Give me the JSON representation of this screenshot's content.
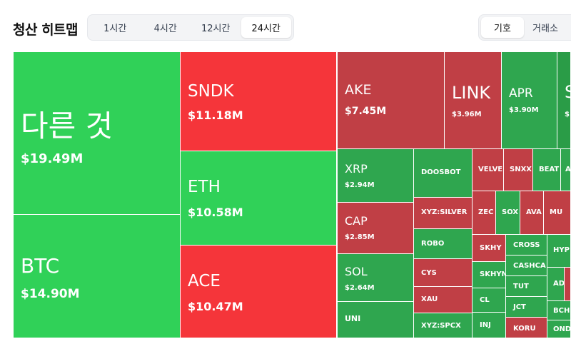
{
  "header": {
    "title": "청산 히트맵",
    "time_tabs": [
      "1시간",
      "4시간",
      "12시간",
      "24시간"
    ],
    "active_time_tab": "24시간",
    "group_tabs": [
      "기호",
      "거래소"
    ],
    "active_group_tab": "기호"
  },
  "colors": {
    "strong_green": "#30d158",
    "strong_red": "#f5353a",
    "dark_green": "#2fa64f",
    "dark_red": "#c03f45"
  },
  "tiles": [
    {
      "symbol": "다른 것",
      "value": "$19.49M"
    },
    {
      "symbol": "BTC",
      "value": "$14.90M"
    },
    {
      "symbol": "SNDK",
      "value": "$11.18M"
    },
    {
      "symbol": "ETH",
      "value": "$10.58M"
    },
    {
      "symbol": "ACE",
      "value": "$10.47M"
    },
    {
      "symbol": "AKE",
      "value": "$7.45M"
    },
    {
      "symbol": "LINK",
      "value": "$3.96M"
    },
    {
      "symbol": "APR",
      "value": "$3.90M"
    },
    {
      "symbol": "S",
      "value": "$"
    },
    {
      "symbol": "XRP",
      "value": "$2.94M"
    },
    {
      "symbol": "CAP",
      "value": "$2.85M"
    },
    {
      "symbol": "SOL",
      "value": "$2.64M"
    },
    {
      "symbol": "UNI",
      "value": ""
    },
    {
      "symbol": "DOOSBOT",
      "value": ""
    },
    {
      "symbol": "XYZ:SILVER",
      "value": ""
    },
    {
      "symbol": "ROBO",
      "value": ""
    },
    {
      "symbol": "CYS",
      "value": ""
    },
    {
      "symbol": "XAU",
      "value": ""
    },
    {
      "symbol": "XYZ:SPCX",
      "value": ""
    },
    {
      "symbol": "VELVE",
      "value": ""
    },
    {
      "symbol": "SNXX",
      "value": ""
    },
    {
      "symbol": "BEAT",
      "value": ""
    },
    {
      "symbol": "A",
      "value": ""
    },
    {
      "symbol": "ZEC",
      "value": ""
    },
    {
      "symbol": "SOX",
      "value": ""
    },
    {
      "symbol": "AVA",
      "value": ""
    },
    {
      "symbol": "MU",
      "value": ""
    },
    {
      "symbol": "SKHY",
      "value": ""
    },
    {
      "symbol": "CROSS",
      "value": ""
    },
    {
      "symbol": "HYP",
      "value": ""
    },
    {
      "symbol": "SKHYN",
      "value": ""
    },
    {
      "symbol": "CASHCA",
      "value": ""
    },
    {
      "symbol": "TUT",
      "value": ""
    },
    {
      "symbol": "AD",
      "value": ""
    },
    {
      "symbol": "CL",
      "value": ""
    },
    {
      "symbol": "JCT",
      "value": ""
    },
    {
      "symbol": "BCH",
      "value": ""
    },
    {
      "symbol": "INJ",
      "value": ""
    },
    {
      "symbol": "KORU",
      "value": ""
    },
    {
      "symbol": "OND",
      "value": ""
    }
  ]
}
